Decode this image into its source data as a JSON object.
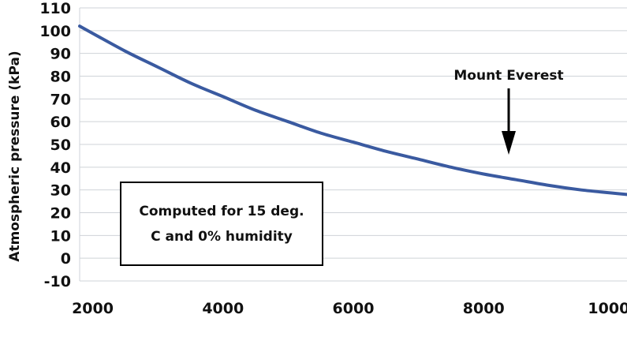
{
  "chart_data": {
    "type": "line",
    "ylabel": "Atmospheric pressure (kPa)",
    "xlabel": "",
    "xlim": [
      1800,
      10200
    ],
    "ylim": [
      -10,
      110
    ],
    "x_ticks": [
      2000,
      4000,
      6000,
      8000,
      10000
    ],
    "y_ticks": [
      -10,
      0,
      10,
      20,
      30,
      40,
      50,
      60,
      70,
      80,
      90,
      100,
      110
    ],
    "grid": "horizontal",
    "line_color": "#3a5aa0",
    "series": [
      {
        "x": [
          1800,
          2500,
          3000,
          3500,
          4000,
          4500,
          5000,
          5500,
          6000,
          6500,
          7000,
          7500,
          8000,
          8500,
          9000,
          9500,
          10200
        ],
        "values": [
          102,
          91,
          84,
          77,
          71,
          65,
          60,
          55,
          51,
          47,
          43.5,
          40,
          37,
          34.5,
          32,
          30,
          28
        ]
      }
    ],
    "annotations": [
      {
        "text": "Mount Everest",
        "x": 8848,
        "arrow_to_y": 37
      }
    ],
    "note": {
      "lines": [
        "Computed for 15 deg.",
        "C and 0% humidity"
      ]
    }
  }
}
